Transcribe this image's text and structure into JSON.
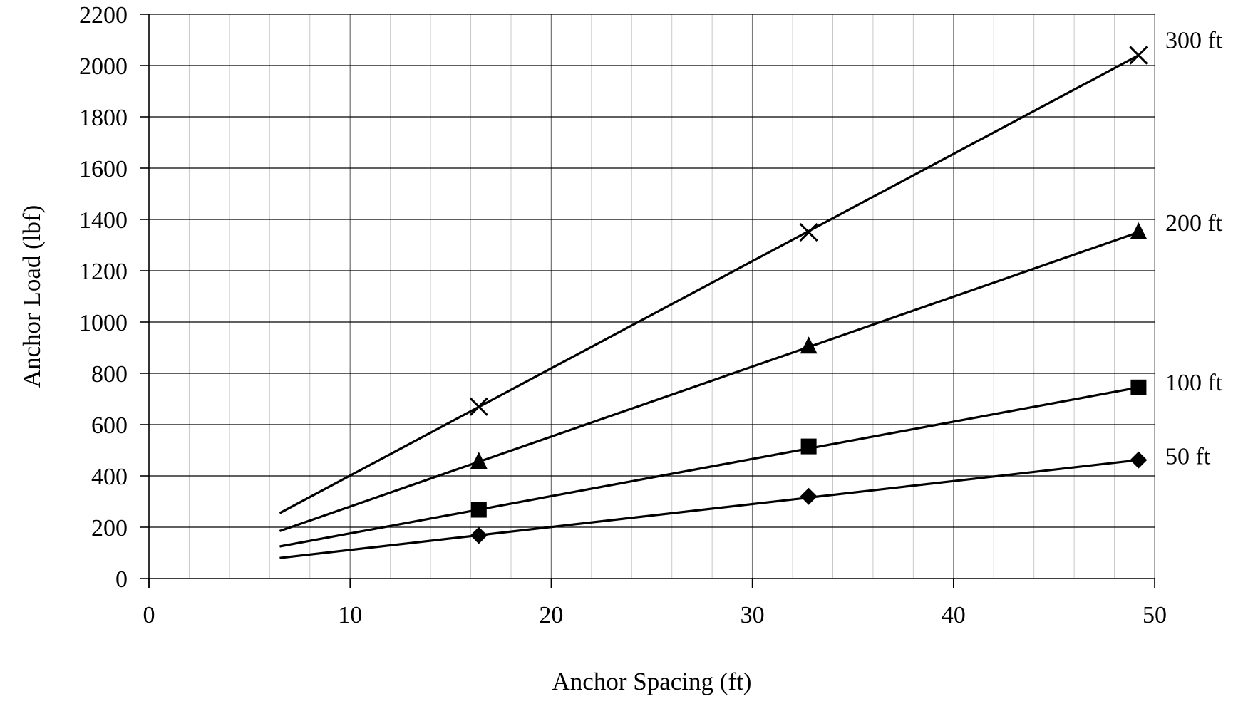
{
  "chart_data": {
    "type": "line",
    "xlabel": "Anchor Spacing (ft)",
    "ylabel": "Anchor Load (lbf)",
    "xlim": [
      0,
      50
    ],
    "ylim": [
      0,
      2200
    ],
    "x_ticks": [
      0,
      10,
      20,
      30,
      40,
      50
    ],
    "y_ticks": [
      0,
      200,
      400,
      600,
      800,
      1000,
      1200,
      1400,
      1600,
      1800,
      2000,
      2200
    ],
    "x_minor_step": 2,
    "grid": true,
    "legend": "labels at right end of each line",
    "series": [
      {
        "name": "50 ft",
        "marker": "diamond",
        "line_x": [
          6.5,
          49.2
        ],
        "line_y": [
          80,
          462
        ],
        "points": [
          {
            "x": 16.4,
            "y": 168
          },
          {
            "x": 32.8,
            "y": 320
          },
          {
            "x": 49.2,
            "y": 462
          }
        ]
      },
      {
        "name": "100 ft",
        "marker": "square",
        "line_x": [
          6.5,
          49.2
        ],
        "line_y": [
          125,
          745
        ],
        "points": [
          {
            "x": 16.4,
            "y": 268
          },
          {
            "x": 32.8,
            "y": 515
          },
          {
            "x": 49.2,
            "y": 745
          }
        ]
      },
      {
        "name": "200 ft",
        "marker": "triangle",
        "line_x": [
          6.5,
          49.2
        ],
        "line_y": [
          185,
          1350
        ],
        "points": [
          {
            "x": 16.4,
            "y": 455
          },
          {
            "x": 32.8,
            "y": 905
          },
          {
            "x": 49.2,
            "y": 1350
          }
        ]
      },
      {
        "name": "300 ft",
        "marker": "x",
        "line_x": [
          6.5,
          49.2
        ],
        "line_y": [
          255,
          2040
        ],
        "points": [
          {
            "x": 16.4,
            "y": 670
          },
          {
            "x": 32.8,
            "y": 1350
          },
          {
            "x": 49.2,
            "y": 2040
          }
        ]
      }
    ]
  }
}
